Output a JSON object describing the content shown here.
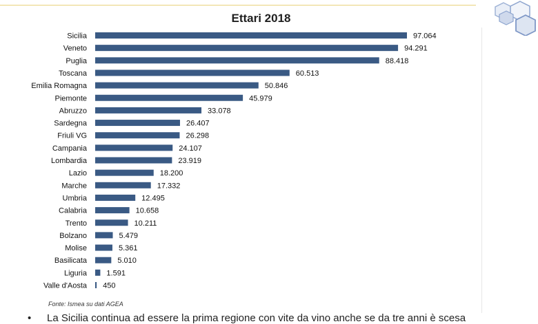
{
  "chart_data": {
    "type": "bar",
    "orientation": "horizontal",
    "title": "Ettari 2018",
    "categories": [
      "Sicilia",
      "Veneto",
      "Puglia",
      "Toscana",
      "Emilia Romagna",
      "Piemonte",
      "Abruzzo",
      "Sardegna",
      "Friuli VG",
      "Campania",
      "Lombardia",
      "Lazio",
      "Marche",
      "Umbria",
      "Calabria",
      "Trento",
      "Bolzano",
      "Molise",
      "Basilicata",
      "Liguria",
      "Valle d'Aosta"
    ],
    "values": [
      97064,
      94291,
      88418,
      60513,
      50846,
      45979,
      33078,
      26407,
      26298,
      24107,
      23919,
      18200,
      17332,
      12495,
      10658,
      10211,
      5479,
      5361,
      5010,
      1591,
      450
    ],
    "value_labels": [
      "97.064",
      "94.291",
      "88.418",
      "60.513",
      "50.846",
      "45.979",
      "33.078",
      "26.407",
      "26.298",
      "24.107",
      "23.919",
      "18.200",
      "17.332",
      "12.495",
      "10.658",
      "10.211",
      "5.479",
      "5.361",
      "5.010",
      "1.591",
      "450"
    ],
    "bar_color": "#3a5a84",
    "grid": false,
    "legend": "none"
  },
  "source_note": "Fonte: Ismea su dati AGEA",
  "bullet": {
    "symbol": "•",
    "text": "La Sicilia continua ad essere la prima regione con vite da vino anche se da tre anni è scesa"
  }
}
